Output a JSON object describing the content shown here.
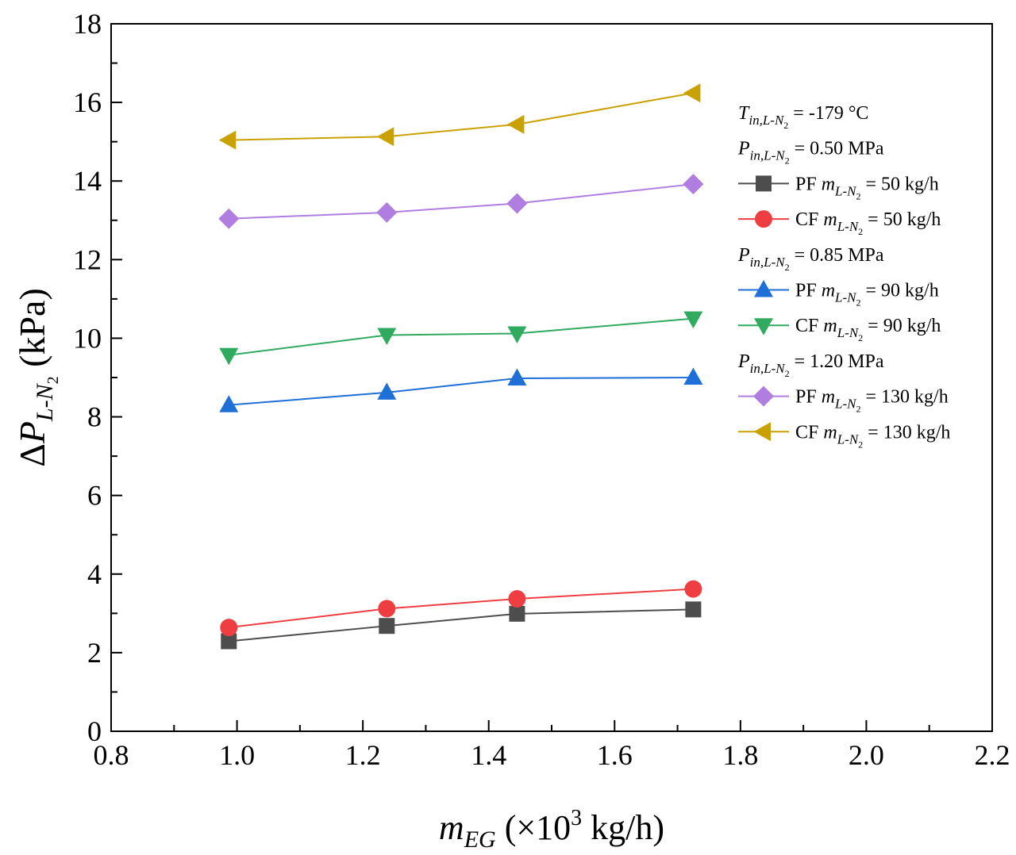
{
  "chart_data": {
    "type": "line",
    "xlabel": {
      "main": "m",
      "sub": "EG",
      "rest_pre": " (×10",
      "sup": "3",
      "rest_post": " kg/h)"
    },
    "ylabel": {
      "pre": "Δ",
      "main": "P",
      "sub": "L-N",
      "subsub": "2",
      "rest": " (kPa)"
    },
    "xlim": [
      0.8,
      2.2
    ],
    "ylim": [
      0,
      18
    ],
    "x_ticks": [
      0.8,
      1.0,
      1.2,
      1.4,
      1.6,
      1.8,
      2.0,
      2.2
    ],
    "x_tick_labels": [
      "0.8",
      "1.0",
      "1.2",
      "1.4",
      "1.6",
      "1.8",
      "2.0",
      "2.2"
    ],
    "y_ticks": [
      0,
      2,
      4,
      6,
      8,
      10,
      12,
      14,
      16,
      18
    ],
    "y_tick_labels": [
      "0",
      "2",
      "4",
      "6",
      "8",
      "10",
      "12",
      "14",
      "16",
      "18"
    ],
    "grid": false,
    "legend_position": "top-right",
    "x": [
      0.987,
      1.238,
      1.445,
      1.725
    ],
    "series": [
      {
        "name": "PF m_L-N2 = 50 kg/h",
        "label_pre": "PF ",
        "label_post": " = 50 kg/h",
        "marker": "square",
        "color": "#4d4d4d",
        "values": [
          2.29,
          2.68,
          2.99,
          3.1
        ]
      },
      {
        "name": "CF m_L-N2 = 50 kg/h",
        "label_pre": "CF ",
        "label_post": " = 50 kg/h",
        "marker": "circle",
        "color": "#ee3e42",
        "values": [
          2.64,
          3.12,
          3.37,
          3.62
        ]
      },
      {
        "name": "PF m_L-N2 = 90 kg/h",
        "label_pre": "PF ",
        "label_post": " = 90 kg/h",
        "marker": "triangle-up",
        "color": "#1f6fd8",
        "values": [
          8.3,
          8.62,
          8.98,
          9.0
        ]
      },
      {
        "name": "CF m_L-N2 = 90 kg/h",
        "label_pre": "CF ",
        "label_post": " = 90 kg/h",
        "marker": "triangle-down",
        "color": "#2faa5f",
        "values": [
          9.57,
          10.08,
          10.12,
          10.5
        ]
      },
      {
        "name": "PF m_L-N2 = 130 kg/h",
        "label_pre": "PF ",
        "label_post": " = 130 kg/h",
        "marker": "diamond",
        "color": "#b07ee0",
        "values": [
          13.04,
          13.2,
          13.43,
          13.92
        ]
      },
      {
        "name": "CF m_L-N2 = 130 kg/h",
        "label_pre": "CF ",
        "label_post": " = 130 kg/h",
        "marker": "triangle-left",
        "color": "#c9a100",
        "values": [
          15.04,
          15.13,
          15.44,
          16.24
        ]
      }
    ],
    "legend": [
      {
        "kind": "text",
        "sym": "T",
        "sub": "in,L-N",
        "subsub": "2",
        "value": " = -179 °C"
      },
      {
        "kind": "text",
        "sym": "P",
        "sub": "in,L-N",
        "subsub": "2",
        "value": " = 0.50 MPa"
      },
      {
        "kind": "series",
        "series": 0
      },
      {
        "kind": "series",
        "series": 1
      },
      {
        "kind": "text",
        "sym": "P",
        "sub": "in,L-N",
        "subsub": "2",
        "value": " = 0.85 MPa"
      },
      {
        "kind": "series",
        "series": 2
      },
      {
        "kind": "series",
        "series": 3
      },
      {
        "kind": "text",
        "sym": "P",
        "sub": "in,L-N",
        "subsub": "2",
        "value": " = 1.20 MPa"
      },
      {
        "kind": "series",
        "series": 4
      },
      {
        "kind": "series",
        "series": 5
      }
    ],
    "legend_symbol": {
      "main": "m",
      "sub": "L-N",
      "subsub": "2"
    }
  }
}
